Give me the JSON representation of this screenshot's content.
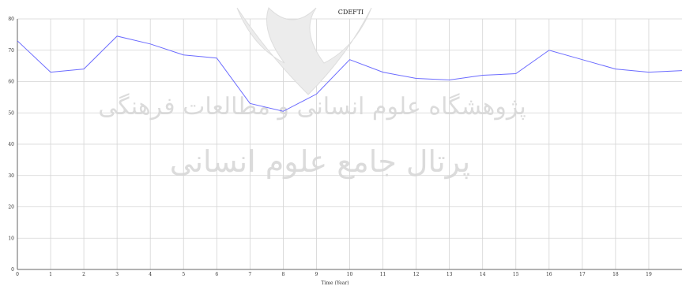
{
  "watermark": {
    "line1": "پژوهشگاه علوم انسانی و مطالعات فرهنگی",
    "line2": "پرتال جامع علوم انسانی"
  },
  "chart_data": {
    "type": "line",
    "title": "CDEFTI",
    "xlabel": "Time (Year)",
    "ylabel": "",
    "x": [
      0,
      1,
      2,
      3,
      4,
      5,
      6,
      7,
      8,
      9,
      10,
      11,
      12,
      13,
      14,
      15,
      16,
      17,
      18,
      19,
      20
    ],
    "xlim": [
      0,
      20
    ],
    "ylim": [
      0,
      80
    ],
    "x_ticks": [
      0,
      1,
      2,
      3,
      4,
      5,
      6,
      7,
      8,
      9,
      10,
      11,
      12,
      13,
      14,
      15,
      16,
      17,
      18,
      19
    ],
    "y_ticks": [
      0,
      10,
      20,
      30,
      40,
      50,
      60,
      70,
      80
    ],
    "grid": true,
    "series": [
      {
        "values": [
          73,
          63,
          64,
          74.5,
          72,
          68.5,
          67.5,
          53,
          50.5,
          56,
          67,
          63,
          61,
          60.5,
          62,
          62.5,
          70,
          67,
          64,
          63,
          63.5
        ],
        "color": "#6b6bff"
      }
    ]
  }
}
